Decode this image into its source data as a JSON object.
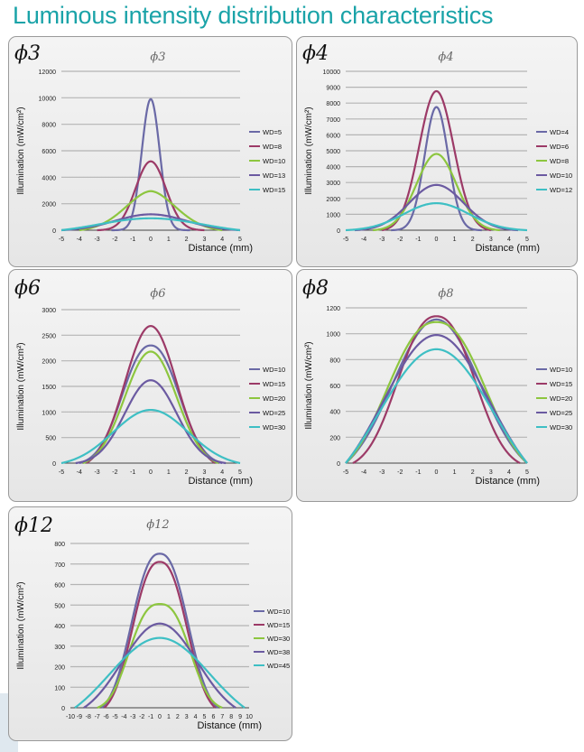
{
  "page": {
    "title": "Luminous intensity distribution characteristics"
  },
  "colors": {
    "s1": "#6a69a6",
    "s2": "#9c3a67",
    "s3": "#8dc63f",
    "s4": "#6b5aa1",
    "s5": "#3ebfc4",
    "title": "#1aa3a8",
    "grid": "#b4b4b4"
  },
  "chart_data": [
    {
      "id": "p3",
      "type": "line",
      "corner_label": "ϕ3",
      "title": "ϕ3",
      "xlabel": "Distance (mm)",
      "ylabel": "Illumination (mW/cm²)",
      "xticks": [
        -5,
        -4,
        -3,
        -2,
        -1,
        0,
        1,
        2,
        3,
        4,
        5
      ],
      "xtick_labels": [
        "-5",
        "-4",
        "-3",
        "-2",
        "-1",
        "0",
        "1",
        "2",
        "3",
        "4",
        "5"
      ],
      "ylim": [
        0,
        12000
      ],
      "yticks": [
        0,
        2000,
        4000,
        6000,
        8000,
        10000,
        12000
      ],
      "series": [
        {
          "name": "WD=5",
          "color": "#6a69a6",
          "peak": 9900,
          "sigma": 0.5,
          "base": 0,
          "xmin": -2.2,
          "xmax": 2.2
        },
        {
          "name": "WD=8",
          "color": "#9c3a67",
          "peak": 5200,
          "sigma": 0.85,
          "base": 0,
          "xmin": -3,
          "xmax": 3
        },
        {
          "name": "WD=10",
          "color": "#8dc63f",
          "peak": 2950,
          "sigma": 1.4,
          "p": 1.8,
          "base": 0,
          "xmin": -4,
          "xmax": 4
        },
        {
          "name": "WD=13",
          "color": "#6b5aa1",
          "peak": 1200,
          "sigma": 2.0,
          "base": 0,
          "xmin": -5,
          "xmax": 5
        },
        {
          "name": "WD=15",
          "color": "#3ebfc4",
          "peak": 900,
          "sigma": 2.9,
          "base": 0,
          "xmin": -5,
          "xmax": 5
        }
      ]
    },
    {
      "id": "p4",
      "type": "line",
      "corner_label": "ϕ4",
      "title": "ϕ4",
      "xlabel": "Distance (mm)",
      "ylabel": "Illumination (mW/cm²)",
      "xticks": [
        -5,
        -4,
        -3,
        -2,
        -1,
        0,
        1,
        2,
        3,
        4,
        5
      ],
      "xtick_labels": [
        "-5",
        "-4",
        "-3",
        "-2",
        "-1",
        "0",
        "1",
        "2",
        "3",
        "4",
        "5"
      ],
      "ylim": [
        0,
        10000
      ],
      "yticks": [
        0,
        1000,
        2000,
        3000,
        4000,
        5000,
        6000,
        7000,
        8000,
        9000,
        10000
      ],
      "series": [
        {
          "name": "WD=4",
          "color": "#6a69a6",
          "peak": 7750,
          "sigma": 0.65,
          "base": 0,
          "xmin": -2.5,
          "xmax": 2.5
        },
        {
          "name": "WD=6",
          "color": "#9c3a67",
          "peak": 8750,
          "sigma": 0.95,
          "base": 0,
          "xmin": -3,
          "xmax": 3
        },
        {
          "name": "WD=8",
          "color": "#8dc63f",
          "peak": 4800,
          "sigma": 1.1,
          "base": 0,
          "xmin": -3.5,
          "xmax": 3.5
        },
        {
          "name": "WD=10",
          "color": "#6b5aa1",
          "peak": 2850,
          "sigma": 1.5,
          "base": 0,
          "xmin": -4.5,
          "xmax": 4.5
        },
        {
          "name": "WD=12",
          "color": "#3ebfc4",
          "peak": 1700,
          "sigma": 1.8,
          "base": 0,
          "xmin": -5,
          "xmax": 5
        }
      ]
    },
    {
      "id": "p6",
      "type": "line",
      "corner_label": "ϕ6",
      "title": "ϕ6",
      "xlabel": "Distance (mm)",
      "ylabel": "Illumination (mW/cm²)",
      "xticks": [
        -5,
        -4,
        -3,
        -2,
        -1,
        0,
        1,
        2,
        3,
        4,
        5
      ],
      "xtick_labels": [
        "-5",
        "-4",
        "-3",
        "-2",
        "-1",
        "0",
        "1",
        "2",
        "3",
        "4",
        "5"
      ],
      "ylim": [
        0,
        3000
      ],
      "yticks": [
        0,
        500,
        1000,
        1500,
        2000,
        2500,
        3000
      ],
      "series": [
        {
          "name": "WD=10",
          "color": "#6a69a6",
          "peak": 2300,
          "sigma": 1.55,
          "p": 2.2,
          "base": 0,
          "xmin": -4,
          "xmax": 4
        },
        {
          "name": "WD=15",
          "color": "#9c3a67",
          "peak": 2680,
          "sigma": 1.45,
          "p": 2.0,
          "base": 0,
          "xmin": -3.6,
          "xmax": 3.6
        },
        {
          "name": "WD=20",
          "color": "#8dc63f",
          "peak": 2180,
          "sigma": 1.45,
          "p": 2.0,
          "base": 0,
          "xmin": -3.8,
          "xmax": 3.8
        },
        {
          "name": "WD=25",
          "color": "#6b5aa1",
          "peak": 1620,
          "sigma": 1.45,
          "p": 2.0,
          "base": 0,
          "xmin": -4.2,
          "xmax": 4.2
        },
        {
          "name": "WD=30",
          "color": "#3ebfc4",
          "peak": 1040,
          "sigma": 2.1,
          "base": 0,
          "xmin": -5,
          "xmax": 5
        }
      ]
    },
    {
      "id": "p8",
      "type": "line",
      "corner_label": "ϕ8",
      "title": "ϕ8",
      "xlabel": "Distance (mm)",
      "ylabel": "Illumination (mW/cm²)",
      "xticks": [
        -5,
        -4,
        -3,
        -2,
        -1,
        0,
        1,
        2,
        3,
        4,
        5
      ],
      "xtick_labels": [
        "-5",
        "-4",
        "-3",
        "-2",
        "-1",
        "0",
        "1",
        "2",
        "3",
        "4",
        "5"
      ],
      "ylim": [
        0,
        1200
      ],
      "yticks": [
        0,
        200,
        400,
        600,
        800,
        1000,
        1200
      ],
      "series": [
        {
          "name": "WD=10",
          "color": "#6a69a6",
          "peak": 1110,
          "sigma": 2.4,
          "base": 0,
          "xmin": -5,
          "xmax": 5
        },
        {
          "name": "WD=15",
          "color": "#9c3a67",
          "peak": 1135,
          "sigma": 2.05,
          "p": 2.3,
          "base": 0,
          "xmin": -4.6,
          "xmax": 4.6
        },
        {
          "name": "WD=20",
          "color": "#8dc63f",
          "peak": 1090,
          "sigma": 2.6,
          "p": 2.3,
          "base": 0,
          "xmin": -5,
          "xmax": 5
        },
        {
          "name": "WD=25",
          "color": "#6b5aa1",
          "peak": 990,
          "sigma": 2.9,
          "base": 0,
          "xmin": -5,
          "xmax": 5
        },
        {
          "name": "WD=30",
          "color": "#3ebfc4",
          "peak": 880,
          "sigma": 3.1,
          "base": 0,
          "xmin": -5,
          "xmax": 5
        }
      ]
    },
    {
      "id": "p12",
      "type": "line",
      "corner_label": "ϕ12",
      "title": "ϕ12",
      "xlabel": "Distance (mm)",
      "ylabel": "Illumination (mW/cm²)",
      "xticks": [
        -10,
        -9,
        -8,
        -7,
        -6,
        -5,
        -4,
        -3,
        -2,
        -1,
        0,
        1,
        2,
        3,
        4,
        5,
        6,
        7,
        8,
        9,
        10
      ],
      "xtick_labels": [
        "-10",
        "-9",
        "-8",
        "-7",
        "-6",
        "-5",
        "-4",
        "-3",
        "-2",
        "-1",
        "0",
        "1",
        "2",
        "3",
        "4",
        "5",
        "6",
        "7",
        "8",
        "9",
        "10"
      ],
      "ylim": [
        0,
        800
      ],
      "yticks": [
        0,
        100,
        200,
        300,
        400,
        500,
        600,
        700,
        800
      ],
      "series": [
        {
          "name": "WD=10",
          "color": "#6a69a6",
          "peak": 750,
          "sigma": 3.0,
          "p": 2.4,
          "base": 0,
          "xmin": -6.5,
          "xmax": 6.5
        },
        {
          "name": "WD=15",
          "color": "#9c3a67",
          "peak": 710,
          "sigma": 2.9,
          "p": 2.4,
          "base": 0,
          "xmin": -6.2,
          "xmax": 6.2
        },
        {
          "name": "WD=30",
          "color": "#8dc63f",
          "peak": 505,
          "sigma": 3.2,
          "p": 2.6,
          "base": 0,
          "xmin": -7,
          "xmax": 7
        },
        {
          "name": "WD=38",
          "color": "#6b5aa1",
          "peak": 410,
          "sigma": 4.2,
          "base": 0,
          "xmin": -8.5,
          "xmax": 8.5
        },
        {
          "name": "WD=45",
          "color": "#3ebfc4",
          "peak": 340,
          "sigma": 5.6,
          "base": 0,
          "xmin": -9.5,
          "xmax": 9.5
        }
      ]
    }
  ]
}
